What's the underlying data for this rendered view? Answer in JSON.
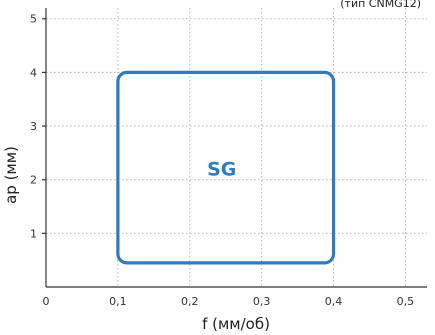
{
  "chart_data": {
    "type": "area",
    "title": "",
    "note": "(тип CNMG12)",
    "xlabel": "f (мм/об)",
    "ylabel": "ap (мм)",
    "xlim": [
      0,
      0.53
    ],
    "ylim": [
      0,
      5.2
    ],
    "x_ticks": [
      {
        "value": 0,
        "label": "0"
      },
      {
        "value": 0.1,
        "label": "0,1"
      },
      {
        "value": 0.2,
        "label": "0,2"
      },
      {
        "value": 0.3,
        "label": "0,3"
      },
      {
        "value": 0.4,
        "label": "0,4"
      },
      {
        "value": 0.5,
        "label": "0,5"
      }
    ],
    "y_ticks": [
      {
        "value": 1,
        "label": "1"
      },
      {
        "value": 2,
        "label": "2"
      },
      {
        "value": 3,
        "label": "3"
      },
      {
        "value": 4,
        "label": "4"
      },
      {
        "value": 5,
        "label": "5"
      }
    ],
    "grid": true,
    "regions": [
      {
        "label": "SG",
        "f_min": 0.1,
        "f_max": 0.4,
        "ap_min": 0.45,
        "ap_max": 4.0,
        "color": "#2f7bbd"
      }
    ]
  }
}
